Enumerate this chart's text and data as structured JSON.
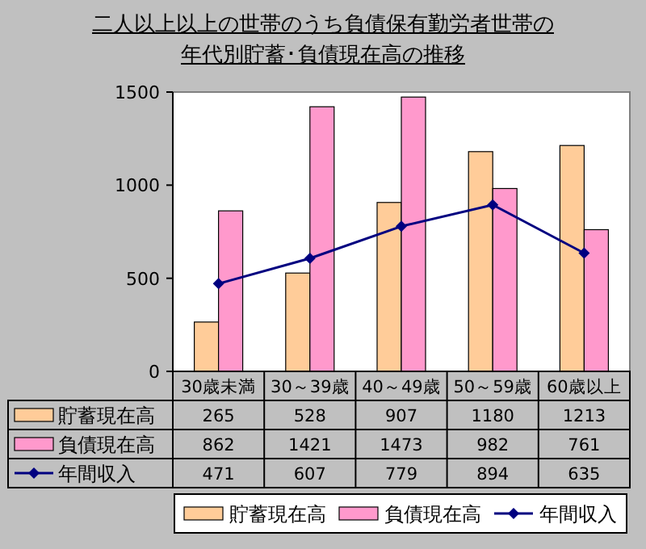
{
  "chart_data": {
    "type": "bar",
    "title": "二人以上以上の世帯のうち負債保有勤労者世帯の年代別貯蓄･負債現在高の推移",
    "categories": [
      "30歳未満",
      "30～39歳",
      "40～49歳",
      "50～59歳",
      "60歳以上"
    ],
    "series": [
      {
        "name": "貯蓄現在高",
        "color": "#ffcc99",
        "values": [
          265,
          528,
          907,
          1180,
          1213
        ]
      },
      {
        "name": "負債現在高",
        "color": "#ff99cc",
        "values": [
          862,
          1421,
          1473,
          982,
          761
        ]
      },
      {
        "name": "年間収入",
        "type": "line",
        "color": "#000080",
        "marker": "diamond",
        "values": [
          471,
          607,
          779,
          894,
          635
        ]
      }
    ],
    "ylim": [
      0,
      1500
    ],
    "yticks": [
      0,
      500,
      1000,
      1500
    ],
    "grid": false,
    "data_labels": true,
    "legend": "bottom"
  }
}
